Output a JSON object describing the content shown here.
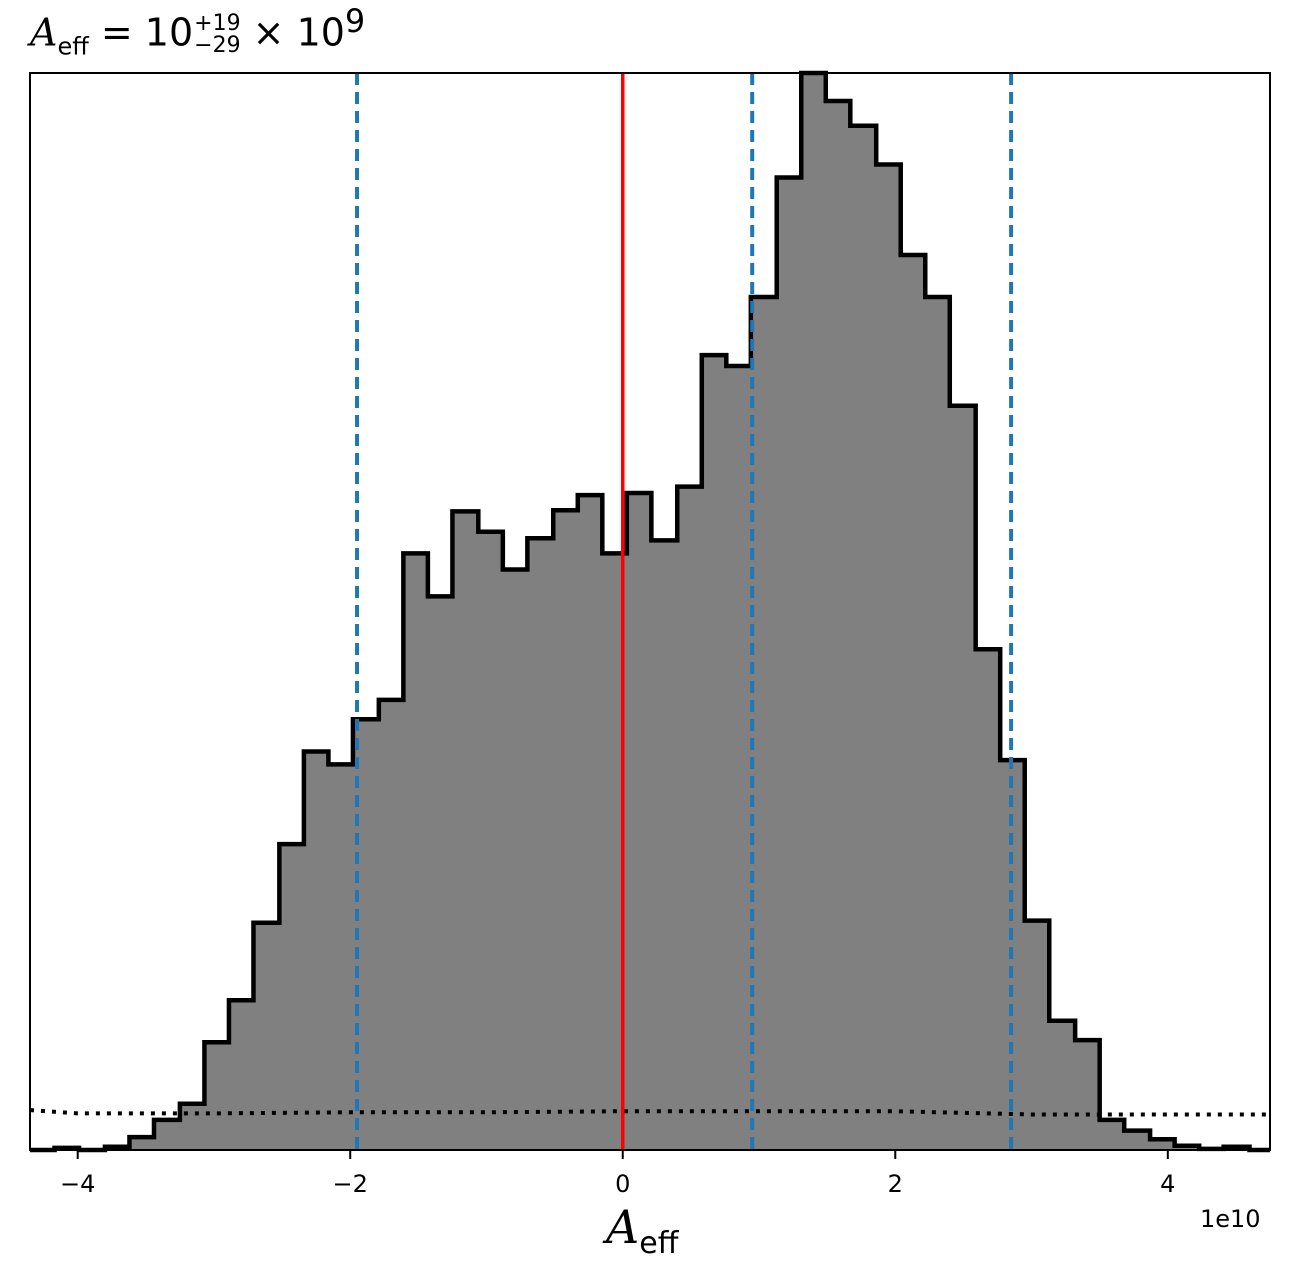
{
  "title": {
    "symbol": "A",
    "subscript": "eff",
    "equals": "= 10",
    "plus_err": "+19",
    "minus_err": "−29",
    "times": "× 10",
    "exponent": "9"
  },
  "xlabel": {
    "symbol": "A",
    "subscript": "eff"
  },
  "offset_text": "1e10",
  "colors": {
    "fill": "#808080",
    "edge": "#000000",
    "median": "#ff0000",
    "quantiles": "#1f77b4",
    "prior": "#000000"
  },
  "chart_data": {
    "type": "histogram",
    "xlim": [
      -43500000000.0,
      47500000000.0
    ],
    "ylim": [
      0,
      1.0
    ],
    "x_ticks": [
      -40000000000.0,
      -20000000000.0,
      0,
      20000000000.0,
      40000000000.0
    ],
    "x_tick_labels": [
      "−4",
      "−2",
      "0",
      "2",
      "4"
    ],
    "y_axis_shown": false,
    "grid": false,
    "bin_edges": [
      -43500000000.0,
      -41700000000.0,
      -39900000000.0,
      -38000000000.0,
      -36200000000.0,
      -34400000000.0,
      -32500000000.0,
      -30700000000.0,
      -28900000000.0,
      -27100000000.0,
      -25200000000.0,
      -23400000000.0,
      -21600000000.0,
      -19800000000.0,
      -17900000000.0,
      -16100000000.0,
      -14300000000.0,
      -12500000000.0,
      -10600000000.0,
      -8800000000.0,
      -7000000000.0,
      -5100000000.0,
      -3300000000.0,
      -1500000000.0,
      300000000.0,
      2100000000.0,
      4000000000.0,
      5800000000.0,
      7600000000.0,
      9400000000.0,
      11300000000.0,
      13100000000.0,
      14900000000.0,
      16700000000.0,
      18600000000.0,
      20400000000.0,
      22200000000.0,
      24000000000.0,
      25900000000.0,
      27700000000.0,
      29500000000.0,
      31300000000.0,
      33200000000.0,
      35000000000.0,
      36800000000.0,
      38700000000.0,
      40500000000.0,
      42300000000.0,
      44100000000.0,
      46000000000.0,
      47500000000.0
    ],
    "density": [
      0.0,
      0.002,
      0.0,
      0.003,
      0.012,
      0.028,
      0.043,
      0.1,
      0.139,
      0.211,
      0.284,
      0.37,
      0.358,
      0.4,
      0.418,
      0.554,
      0.514,
      0.593,
      0.574,
      0.539,
      0.568,
      0.594,
      0.608,
      0.554,
      0.61,
      0.566,
      0.616,
      0.738,
      0.728,
      0.792,
      0.903,
      1.0,
      0.974,
      0.951,
      0.915,
      0.831,
      0.792,
      0.691,
      0.465,
      0.362,
      0.213,
      0.12,
      0.102,
      0.028,
      0.018,
      0.01,
      0.004,
      0.001,
      0.003,
      0.0
    ],
    "median": 0,
    "quantiles": [
      -19500000000.0,
      9500000000.0,
      28500000000.0
    ],
    "prior": {
      "style": "dotted",
      "x": [
        -43500000000.0,
        -40000000000.0,
        -30000000000.0,
        -20000000000.0,
        -10000000000.0,
        0,
        10000000000.0,
        20000000000.0,
        30000000000.0,
        40000000000.0,
        47500000000.0
      ],
      "density": [
        0.037,
        0.034,
        0.034,
        0.035,
        0.035,
        0.036,
        0.036,
        0.036,
        0.033,
        0.033,
        0.033
      ]
    }
  }
}
